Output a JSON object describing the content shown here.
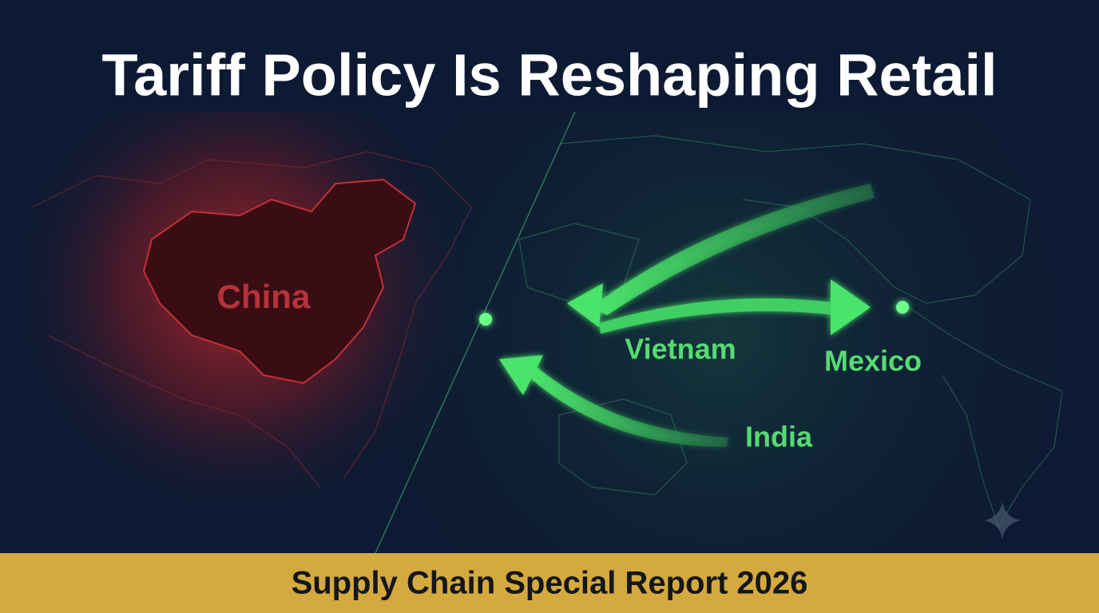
{
  "header": {
    "title": "Tariff Policy Is Reshaping Retail"
  },
  "map": {
    "origin_label": "China",
    "destinations": [
      {
        "label": "Vietnam"
      },
      {
        "label": "Mexico"
      },
      {
        "label": "India"
      }
    ]
  },
  "footer": {
    "banner": "Supply Chain Special Report 2026"
  }
}
